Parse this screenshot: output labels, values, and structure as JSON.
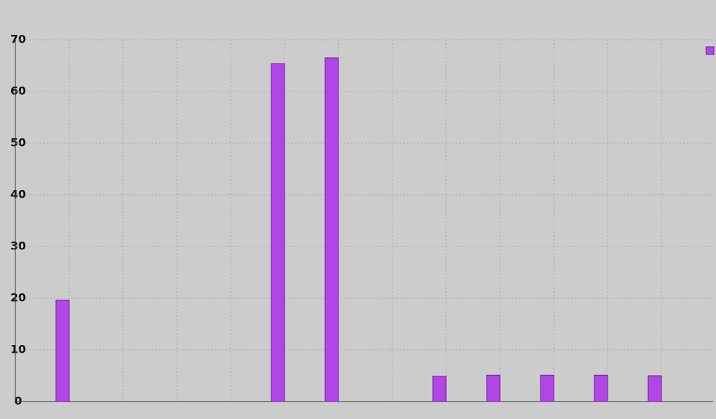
{
  "chart_data": {
    "type": "bar",
    "categories": [
      null,
      null,
      null,
      null,
      null,
      null,
      null,
      null,
      null,
      null,
      null,
      null
    ],
    "series": [
      {
        "color": "#b146e6",
        "values": [
          19.6,
          0,
          0,
          0,
          65.4,
          66.5,
          0,
          4.9,
          5.1,
          5.1,
          5.1,
          5.0
        ]
      }
    ],
    "ylim": [
      0,
      70
    ],
    "yticks": [
      0,
      10,
      20,
      30,
      40,
      50,
      60,
      70
    ],
    "grid": true
  }
}
